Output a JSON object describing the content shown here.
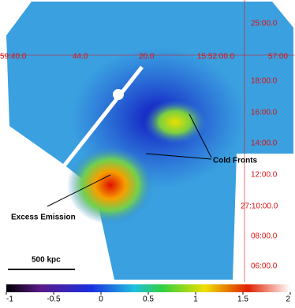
{
  "image": {
    "coordinate_labels": {
      "top": [
        "59:40.0",
        "44.0",
        "20.0",
        "15:52:00.0",
        "57:00"
      ],
      "right": [
        "25:00.0",
        "18:00.0",
        "16:00.0",
        "14:00.0",
        "12:00.0",
        "27:10:00.0",
        "08:00.0",
        "06:00.0"
      ]
    },
    "annotations": {
      "cold_fronts": "Cold Fronts",
      "excess_emission": "Excess Emission",
      "scale_bar": "500 kpc"
    }
  },
  "colorbar": {
    "range": [
      -1,
      2
    ],
    "ticks": [
      -1,
      -0.5,
      0,
      0.5,
      1,
      1.5,
      2
    ]
  }
}
